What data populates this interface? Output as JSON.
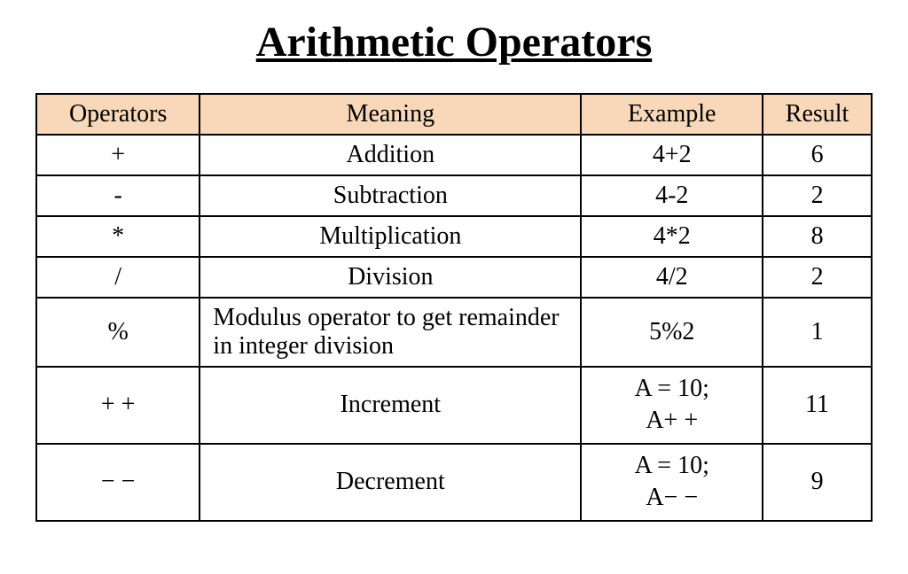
{
  "title": "Arithmetic Operators",
  "table": {
    "columns": [
      "Operators",
      "Meaning",
      "Example",
      "Result"
    ],
    "header_background_color": "#f8d8b8",
    "border_color": "#000000",
    "text_color": "#000000",
    "background_color": "#ffffff",
    "column_widths_pct": [
      18,
      42,
      20,
      12
    ],
    "font_family": "Times New Roman",
    "title_fontsize": 48,
    "cell_fontsize": 28,
    "rows": [
      {
        "operator": "+",
        "meaning": "Addition",
        "meaning_align": "center",
        "example": "4+2",
        "result": "6",
        "operator_valign": "middle",
        "result_valign": "middle"
      },
      {
        "operator": "-",
        "meaning": "Subtraction",
        "meaning_align": "center",
        "example": "4-2",
        "result": "2",
        "operator_valign": "middle",
        "result_valign": "middle"
      },
      {
        "operator": "*",
        "meaning": "Multiplication",
        "meaning_align": "center",
        "example": "4*2",
        "result": "8",
        "operator_valign": "middle",
        "result_valign": "middle"
      },
      {
        "operator": "/",
        "meaning": "Division",
        "meaning_align": "center",
        "example": "4/2",
        "result": "2",
        "operator_valign": "middle",
        "result_valign": "middle"
      },
      {
        "operator": "%",
        "meaning": "Modulus operator to get remainder in integer division",
        "meaning_align": "left",
        "example": "5%2",
        "result": "1",
        "operator_valign": "middle",
        "result_valign": "middle"
      },
      {
        "operator": "+ +",
        "meaning": "Increment",
        "meaning_align": "center",
        "example": "A = 10;\nA+ +",
        "result": "11",
        "operator_valign": "top",
        "result_valign": "top"
      },
      {
        "operator": "− −",
        "meaning": "Decrement",
        "meaning_align": "center",
        "example": "A = 10;\nA− −",
        "result": "9",
        "operator_valign": "top",
        "result_valign": "top"
      }
    ]
  }
}
